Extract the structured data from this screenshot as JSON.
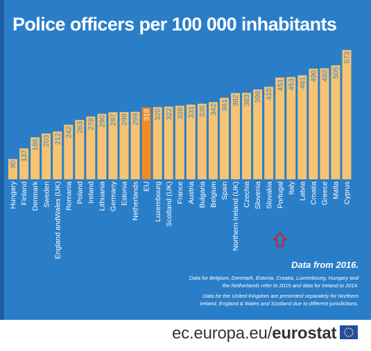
{
  "title": "Police officers per 100 000 inhabitants",
  "notes": {
    "headline": "Data from 2016.",
    "note1": "Data for Belgium, Denmark, Estonia, Croatia, Luxembourg, Hungary and\nthe Netherlands refer to 2015 and data for Ireland to 2014.",
    "note2": "Data for the United Kingdom are presented separately for Northern\nIreland, England & Wales and Scotland due to different jurisdictions."
  },
  "footer": {
    "site": "ec.europa.eu/",
    "brand": "eurostat"
  },
  "colors": {
    "background": "#2a7ec8",
    "bar": "#f7c372",
    "highlight_bar": "#f28a25",
    "arrow": "#d61f26",
    "label_on_bar": "#3a86c8"
  },
  "icons": {
    "arrow": "up-arrow-icon",
    "flag": "eu-flag-icon"
  },
  "chart_data": {
    "type": "bar",
    "title": "Police officers per 100 000 inhabitants",
    "categories": [
      "Hungary",
      "Finland",
      "Denmark",
      "Sweden",
      "England andWales (UK)",
      "Romania",
      "Poland",
      "Ireland",
      "Lithuania",
      "Germany",
      "Estonia",
      "Netherlands",
      "EU",
      "Luxembourg",
      "Scotland (UK)",
      "France",
      "Austria",
      "Bulgaria",
      "Belgium",
      "Spain",
      "Northern Ireland (UK)",
      "Czechia",
      "Slovenia",
      "Slovakia",
      "Portugal",
      "Italy",
      "Latvia",
      "Croatia",
      "Greece",
      "Malta",
      "Cyprus"
    ],
    "values": [
      90,
      137,
      186,
      203,
      212,
      242,
      263,
      278,
      290,
      297,
      298,
      299,
      318,
      320,
      322,
      326,
      331,
      335,
      342,
      361,
      382,
      383,
      398,
      410,
      451,
      453,
      461,
      490,
      492,
      505,
      573
    ],
    "highlight": "EU",
    "marked_category": "Portugal",
    "ylim": [
      0,
      600
    ],
    "grid": false,
    "legend": "none"
  }
}
